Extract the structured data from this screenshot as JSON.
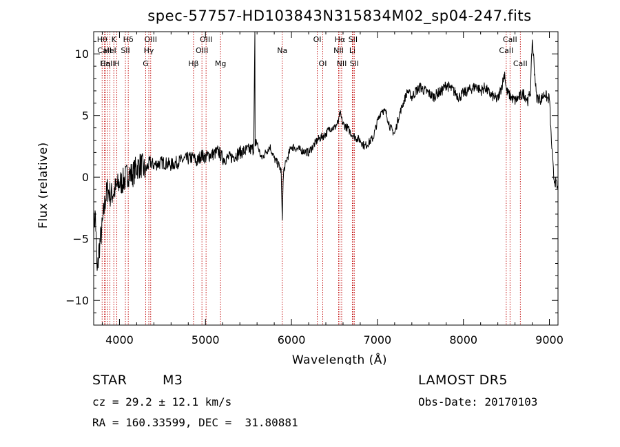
{
  "chart_data": {
    "type": "line",
    "title": "spec-57757-HD103843N315834M02_sp04-247.fits",
    "xlabel": "Wavelength (Å)",
    "ylabel": "Flux (relative)",
    "xlim": [
      3700,
      9100
    ],
    "ylim": [
      -12.0,
      11.8
    ],
    "x_ticks": [
      4000,
      5000,
      6000,
      7000,
      8000,
      9000
    ],
    "y_ticks": [
      -10,
      -5,
      0,
      5,
      10
    ],
    "grid": false,
    "series": [
      {
        "x": [
          3700,
          3720,
          3740,
          3760,
          3780,
          3800,
          3830,
          3860,
          3900,
          3950,
          4000,
          4050,
          4100,
          4150,
          4200,
          4250,
          4300,
          4350,
          4400,
          4500,
          4600,
          4700,
          4800,
          4860,
          4900,
          4950,
          5000,
          5050,
          5100,
          5150,
          5200,
          5300,
          5400,
          5500,
          5560,
          5575,
          5577,
          5579,
          5590,
          5650,
          5700,
          5750,
          5800,
          5850,
          5880,
          5893,
          5900,
          5910,
          5950,
          6000,
          6100,
          6200,
          6250,
          6300,
          6400,
          6450,
          6500,
          6550,
          6563,
          6600,
          6650,
          6700,
          6750,
          6800,
          6850,
          6900,
          6950,
          7000,
          7050,
          7100,
          7150,
          7200,
          7250,
          7300,
          7350,
          7400,
          7450,
          7500,
          7550,
          7600,
          7650,
          7700,
          7750,
          7800,
          7850,
          7900,
          7950,
          8000,
          8050,
          8100,
          8150,
          8200,
          8250,
          8300,
          8350,
          8400,
          8450,
          8480,
          8500,
          8550,
          8600,
          8650,
          8700,
          8750,
          8780,
          8800,
          8850,
          8900,
          8950,
          8980,
          9000,
          9020,
          9050,
          9100
        ],
        "y": [
          -4,
          -3,
          -8,
          -6,
          -5,
          -4,
          -2,
          -1,
          -1.5,
          -1,
          -0.5,
          -0.3,
          0.3,
          0.2,
          0.8,
          1,
          0.5,
          1.2,
          1,
          1.2,
          1,
          1.3,
          1.5,
          1.6,
          1.2,
          1.8,
          1.6,
          1.8,
          1.9,
          2.1,
          1.5,
          1.6,
          2,
          2.2,
          2.3,
          11.8,
          2.5,
          2.6,
          3,
          1.5,
          2,
          2.5,
          1.5,
          1,
          0.5,
          -3.5,
          -1,
          0.5,
          1.5,
          2.5,
          2.2,
          2,
          2.5,
          3,
          3.5,
          4,
          4,
          4.5,
          5.2,
          4.3,
          4,
          3.5,
          3.2,
          3,
          2.5,
          2.8,
          3.2,
          4.5,
          5.5,
          5.2,
          4,
          3.5,
          5,
          6,
          7,
          6.5,
          7,
          7.3,
          7,
          6.8,
          6.5,
          6.8,
          7,
          7.5,
          7.2,
          6.9,
          6.5,
          6.8,
          7,
          7.2,
          7.4,
          7,
          7.3,
          6.8,
          6.5,
          6.3,
          7.5,
          8.5,
          7,
          6.5,
          6.2,
          6.5,
          6.8,
          6.2,
          7,
          11.2,
          6.5,
          6.3,
          6.8,
          6.3,
          6.5,
          3.3,
          0,
          -1
        ],
        "style": "noisy"
      }
    ],
    "line_markers": [
      {
        "label": "Hθ",
        "x": 3798,
        "row": 1
      },
      {
        "label": "CaII",
        "x": 3826,
        "row": 2
      },
      {
        "label": "Hη",
        "x": 3835,
        "row": 3
      },
      {
        "label": "CaII",
        "x": 3862,
        "row": 3
      },
      {
        "label": "K",
        "x": 3934,
        "row": 1
      },
      {
        "label": "HeI",
        "x": 3889,
        "row": 2
      },
      {
        "label": "H",
        "x": 3969,
        "row": 3
      },
      {
        "label": "Hδ",
        "x": 4102,
        "row": 1
      },
      {
        "label": "SII",
        "x": 4069,
        "row": 2
      },
      {
        "label": "OIII",
        "x": 4363,
        "row": 1
      },
      {
        "label": "Hγ",
        "x": 4341,
        "row": 2
      },
      {
        "label": "G",
        "x": 4305,
        "row": 3
      },
      {
        "label": "OIII",
        "x": 5007,
        "row": 1
      },
      {
        "label": "OIII",
        "x": 4959,
        "row": 2
      },
      {
        "label": "Hβ",
        "x": 4861,
        "row": 3
      },
      {
        "label": "Mg",
        "x": 5175,
        "row": 3
      },
      {
        "label": "Na",
        "x": 5893,
        "row": 2
      },
      {
        "label": "OI",
        "x": 6300,
        "row": 1
      },
      {
        "label": "OI",
        "x": 6364,
        "row": 3
      },
      {
        "label": "Hα",
        "x": 6563,
        "row": 1
      },
      {
        "label": "SII",
        "x": 6716,
        "row": 1
      },
      {
        "label": "NII",
        "x": 6548,
        "row": 2
      },
      {
        "label": "Li",
        "x": 6708,
        "row": 2
      },
      {
        "label": "NII",
        "x": 6584,
        "row": 3
      },
      {
        "label": "SII",
        "x": 6731,
        "row": 3
      },
      {
        "label": "CaII",
        "x": 8542,
        "row": 1
      },
      {
        "label": "CaII",
        "x": 8498,
        "row": 2
      },
      {
        "label": "CaII",
        "x": 8662,
        "row": 3
      }
    ]
  },
  "footer": {
    "class_label": "STAR",
    "subclass": "M3",
    "survey": "LAMOST DR5",
    "cz": "cz = 29.2 ± 12.1 km/s",
    "obs_date": "Obs-Date: 20170103",
    "radec": "RA = 160.33599, DEC =  31.80881"
  }
}
